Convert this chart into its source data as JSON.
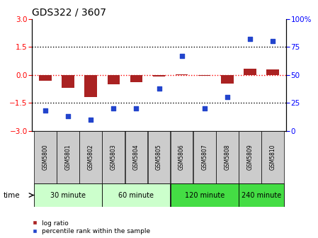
{
  "title": "GDS322 / 3607",
  "samples": [
    "GSM5800",
    "GSM5801",
    "GSM5802",
    "GSM5803",
    "GSM5804",
    "GSM5805",
    "GSM5806",
    "GSM5807",
    "GSM5808",
    "GSM5809",
    "GSM5810"
  ],
  "log_ratio": [
    -0.3,
    -0.7,
    -1.2,
    -0.5,
    -0.4,
    -0.1,
    0.05,
    -0.05,
    -0.45,
    0.35,
    0.3
  ],
  "percentile_rank": [
    18,
    13,
    10,
    20,
    20,
    38,
    67,
    20,
    30,
    82,
    80
  ],
  "ylim_left": [
    -3,
    3
  ],
  "ylim_right": [
    0,
    100
  ],
  "yticks_left": [
    -3,
    -1.5,
    0,
    1.5,
    3
  ],
  "yticks_right": [
    0,
    25,
    50,
    75,
    100
  ],
  "hlines_black": [
    -1.5,
    1.5
  ],
  "hline_red": 0,
  "bar_color": "#aa2222",
  "scatter_color": "#2244cc",
  "bar_width": 0.55,
  "group_defs": [
    {
      "label": "30 minute",
      "start": 0,
      "end": 2,
      "color": "#ccffcc"
    },
    {
      "label": "60 minute",
      "start": 3,
      "end": 5,
      "color": "#ccffcc"
    },
    {
      "label": "120 minute",
      "start": 6,
      "end": 8,
      "color": "#44dd44"
    },
    {
      "label": "240 minute",
      "start": 9,
      "end": 10,
      "color": "#44dd44"
    }
  ],
  "sample_box_color": "#cccccc",
  "figwidth": 4.49,
  "figheight": 3.36,
  "dpi": 100
}
